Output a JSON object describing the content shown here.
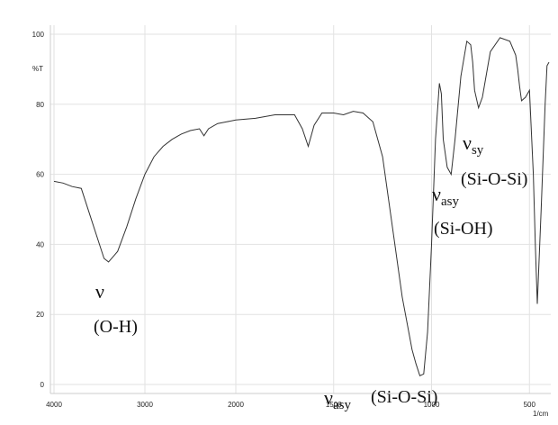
{
  "chart_data": {
    "type": "line",
    "title": "",
    "xlabel": "",
    "ylabel": "%T",
    "x_unit": "1/cm",
    "x_axis_reversed": true,
    "xlim": [
      4000,
      400
    ],
    "ylim": [
      0,
      100
    ],
    "grid": true,
    "x_ticks": [
      "4000",
      "3000",
      "2000",
      "1500",
      "1000",
      "500"
    ],
    "y_ticks": [
      "100",
      "80",
      "60",
      "40",
      "20",
      "0"
    ],
    "series": [
      {
        "x": [
          4000,
          3900,
          3800,
          3700,
          3600,
          3500,
          3450,
          3400,
          3300,
          3200,
          3100,
          3000,
          2900,
          2800,
          2700,
          2600,
          2500,
          2400,
          2350,
          2300,
          2200,
          2100,
          2000,
          1900,
          1800,
          1700,
          1660,
          1630,
          1600,
          1560,
          1500,
          1450,
          1400,
          1350,
          1300,
          1250,
          1200,
          1150,
          1100,
          1080,
          1060,
          1040,
          1020,
          1000,
          980,
          960,
          950,
          940,
          920,
          900,
          880,
          850,
          820,
          800,
          790,
          780,
          760,
          740,
          700,
          650,
          600,
          570,
          560,
          550,
          540,
          520,
          500,
          480,
          470,
          460,
          440,
          420,
          410,
          400
        ],
        "y": [
          58,
          57.5,
          56.5,
          56,
          48,
          40,
          36,
          35,
          38,
          45,
          53,
          60,
          65,
          68,
          70,
          71.5,
          72.5,
          73,
          71,
          73,
          74.5,
          75,
          75.5,
          76,
          77,
          77,
          73,
          68,
          74,
          77.5,
          77.5,
          77,
          78,
          77.5,
          75,
          65,
          45,
          25,
          10,
          6,
          2.5,
          3,
          15,
          40,
          70,
          86,
          83,
          70,
          62,
          60,
          70,
          88,
          98,
          97,
          92,
          84,
          79,
          82,
          95,
          99,
          98,
          94,
          90,
          85,
          81,
          82,
          84,
          60,
          40,
          23,
          50,
          80,
          91,
          92
        ]
      }
    ],
    "annotations": {
      "oh": {
        "symbol": "ν",
        "sub": "",
        "group": "(O-H)"
      },
      "asy_sios": {
        "symbol": "ν",
        "sub": "asy",
        "group": "(Si-O-Si)"
      },
      "asy_sioh": {
        "symbol": "ν",
        "sub": "asy",
        "group": "(Si-OH)"
      },
      "sy_sios": {
        "symbol": "ν",
        "sub": "sy",
        "group": "(Si-O-Si)"
      }
    }
  }
}
